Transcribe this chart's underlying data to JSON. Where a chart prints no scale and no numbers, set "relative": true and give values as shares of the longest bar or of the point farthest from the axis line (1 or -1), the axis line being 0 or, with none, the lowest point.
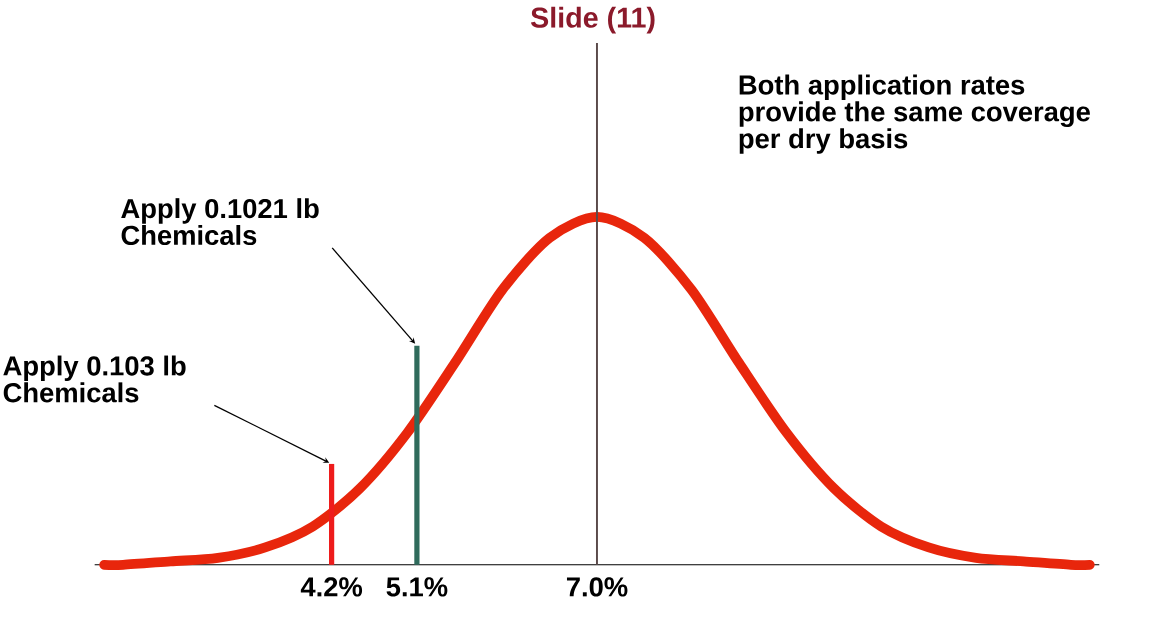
{
  "chart_data": {
    "type": "line",
    "title": "Slide (11)",
    "relative": true,
    "x": [
      1.8,
      2.0,
      2.5,
      3.0,
      3.5,
      4.0,
      4.5,
      5.0,
      5.5,
      6.0,
      6.5,
      7.0,
      7.5,
      8.0,
      8.5,
      9.0,
      9.5,
      10.0,
      10.5,
      11.0,
      11.5,
      12.0,
      12.2
    ],
    "xlim": [
      1.7,
      12.3
    ],
    "xticks": [
      {
        "value": 4.2,
        "label": "4.2%"
      },
      {
        "value": 5.1,
        "label": "5.1%"
      },
      {
        "value": 7.0,
        "label": "7.0%"
      }
    ],
    "series": [
      {
        "color": "#e8260c",
        "values": [
          0,
          0,
          0.01,
          0.02,
          0.05,
          0.11,
          0.22,
          0.38,
          0.58,
          0.79,
          0.94,
          1,
          0.94,
          0.79,
          0.58,
          0.38,
          0.22,
          0.11,
          0.05,
          0.02,
          0.01,
          0,
          0
        ]
      },
      {
        "type": "bar",
        "x": [
          4.2
        ],
        "values": [
          0.29
        ],
        "color": "#ee1c1c"
      },
      {
        "type": "bar",
        "x": [
          5.1
        ],
        "values": [
          0.63
        ],
        "color": "#2f6b5c"
      }
    ],
    "ref_lines": [
      {
        "axis": "x",
        "value": 7.0,
        "color": "#5a4a4a"
      }
    ],
    "annotations": [
      {
        "text": "Apply 0.103 lb Chemicals",
        "x": 4.2,
        "y": 0.29
      },
      {
        "text": "Apply 0.1021 lb Chemicals",
        "x": 5.1,
        "y": 0.63
      },
      "Both application rates provide the same coverage per dry basis"
    ]
  }
}
